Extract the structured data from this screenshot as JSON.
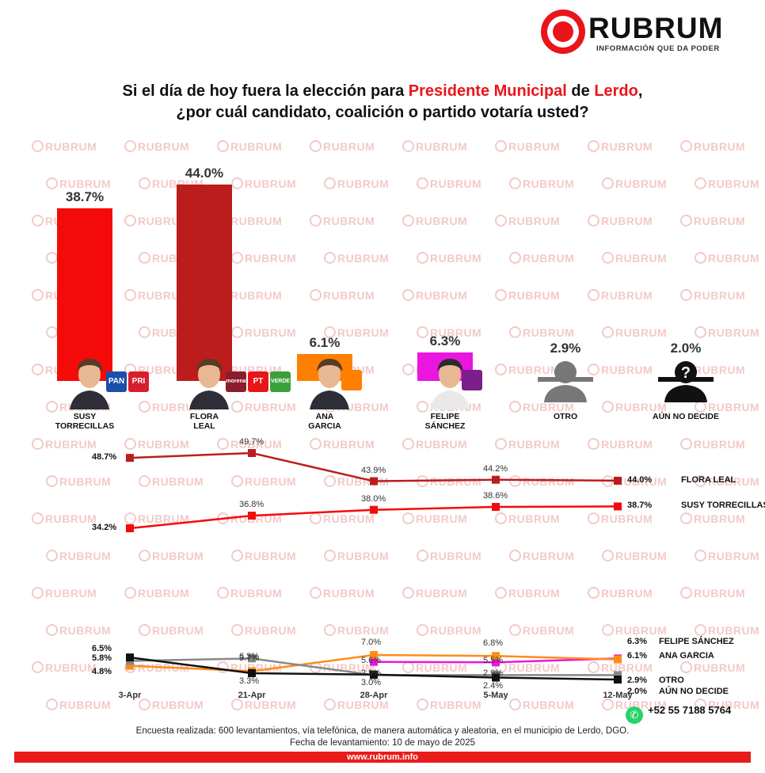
{
  "brand": {
    "name": "RUBRUM",
    "tagline": "INFORMACIÓN QUE DA PODER",
    "watermark": "RUBRUM"
  },
  "title": {
    "line1_a": "Si el día de hoy fuera la elección para ",
    "line1_b": "Presidente Municipal",
    "line1_c": " de ",
    "line1_d": "Lerdo",
    "line1_e": ",",
    "line2": "¿por cuál candidato, coalición o partido votaría usted?"
  },
  "candidates": [
    {
      "name_1": "SUSY",
      "name_2": "TORRECILLAS",
      "value_label": "38.7%",
      "parties": [
        "PAN",
        "PRI"
      ]
    },
    {
      "name_1": "FLORA",
      "name_2": "LEAL",
      "value_label": "44.0%",
      "parties": [
        "morena",
        "PT",
        "VERDE"
      ]
    },
    {
      "name_1": "ANA",
      "name_2": "GARCIA",
      "value_label": "6.1%",
      "parties": []
    },
    {
      "name_1": "FELIPE",
      "name_2": "SÁNCHEZ",
      "value_label": "6.3%",
      "parties": []
    },
    {
      "name_1": "OTRO",
      "name_2": "",
      "value_label": "2.9%",
      "parties": []
    },
    {
      "name_1": "AÚN NO DECIDE",
      "name_2": "",
      "value_label": "2.0%",
      "parties": []
    }
  ],
  "chart_data": [
    {
      "type": "bar",
      "categories": [
        "SUSY TORRECILLAS",
        "FLORA LEAL",
        "ANA GARCIA",
        "FELIPE SÁNCHEZ",
        "OTRO",
        "AÚN NO DECIDE"
      ],
      "values": [
        38.7,
        44.0,
        6.1,
        6.3,
        2.9,
        2.0
      ],
      "colors": [
        "#f50a0a",
        "#bb1d1d",
        "#ff7f00",
        "#ea16e0",
        "#777777",
        "#111111"
      ],
      "ylim": [
        0,
        44
      ]
    },
    {
      "type": "line",
      "x": [
        "3-Apr",
        "21-Apr",
        "28-Apr",
        "5-May",
        "12-May"
      ],
      "series": [
        {
          "name": "FLORA LEAL",
          "color": "#bb1d1d",
          "values": [
            48.7,
            49.7,
            43.9,
            44.2,
            44.0
          ],
          "labels": [
            "48.7%",
            "49.7%",
            "43.9%",
            "44.2%",
            "44.0%"
          ]
        },
        {
          "name": "SUSY TORRECILLAS",
          "color": "#f50a0a",
          "values": [
            34.2,
            36.8,
            38.0,
            38.6,
            38.7
          ],
          "labels": [
            "34.2%",
            "36.8%",
            "38.0%",
            "38.6%",
            "38.7%"
          ]
        }
      ]
    },
    {
      "type": "line",
      "x": [
        "3-Apr",
        "21-Apr",
        "28-Apr",
        "5-May",
        "12-May"
      ],
      "series": [
        {
          "name": "FELIPE SÁNCHEZ",
          "color": "#ea16e0",
          "values": [
            null,
            null,
            5.6,
            5.5,
            6.3
          ],
          "labels": [
            "",
            "",
            "5.6%",
            "5.5%",
            "6.3%"
          ]
        },
        {
          "name": "ANA GARCIA",
          "color": "#ff8c1a",
          "values": [
            4.8,
            3.7,
            7.0,
            6.8,
            6.1
          ],
          "labels": [
            "4.8%",
            "3.7%",
            "7.0%",
            "6.8%",
            "6.1%"
          ]
        },
        {
          "name": "OTRO",
          "color": "#888888",
          "values": [
            5.8,
            6.3,
            2.9,
            2.9,
            2.9
          ],
          "labels": [
            "5.8%",
            "6.3%",
            "2.9%",
            "2.9%",
            "2.9%"
          ]
        },
        {
          "name": "AÚN NO DECIDE",
          "color": "#111111",
          "values": [
            6.5,
            3.3,
            3.0,
            2.4,
            2.0
          ],
          "labels": [
            "6.5%",
            "3.3%",
            "3.0%",
            "2.4%",
            "2.0%"
          ]
        }
      ]
    }
  ],
  "contact": {
    "phone": "+52 55 7188 5764"
  },
  "footer": {
    "line1": "Encuesta realizada: 600 levantamientos, vía telefónica, de manera automática y aleatoria, en el municipio de Lerdo, DGO.",
    "line2": "Fecha de levantamiento: 10 de mayo de 2025",
    "url": "www.rubrum.info"
  }
}
